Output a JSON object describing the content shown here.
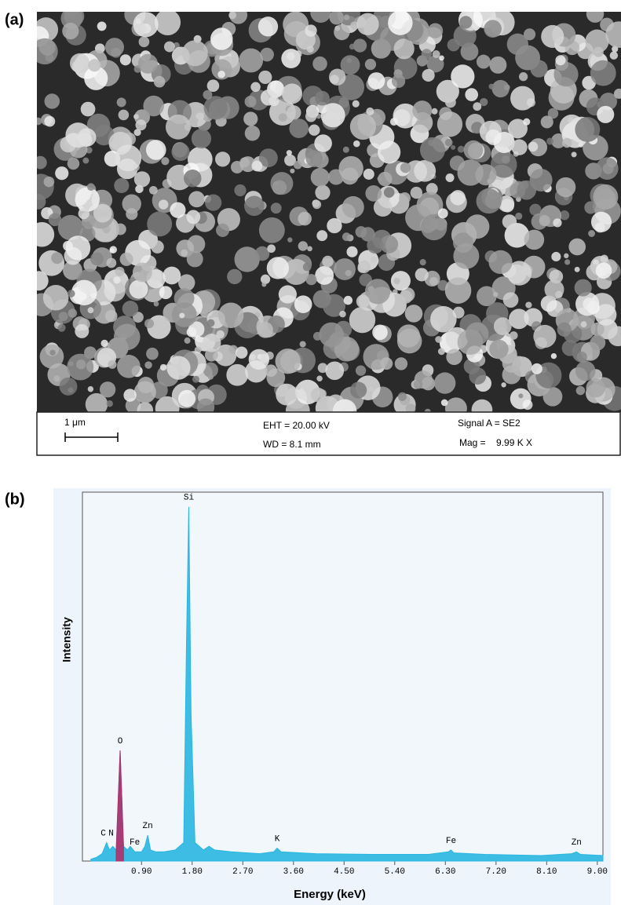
{
  "panel_labels": {
    "a": "(a)",
    "b": "(b)"
  },
  "sem": {
    "scale_bar": "1 μm",
    "eht": "EHT = 20.00 kV",
    "wd": "WD =  8.1 mm",
    "signal": "Signal A = SE2",
    "mag": "Mag =    9.99 K X"
  },
  "chart_data": {
    "type": "area",
    "xlabel": "Energy (keV)",
    "ylabel": "Intensity",
    "x": [
      0,
      0.1,
      0.2,
      0.28,
      0.33,
      0.39,
      0.45,
      0.52,
      0.58,
      0.65,
      0.7,
      0.78,
      0.9,
      0.96,
      1.01,
      1.06,
      1.15,
      1.3,
      1.5,
      1.65,
      1.7,
      1.74,
      1.78,
      1.85,
      2.0,
      2.1,
      2.2,
      2.5,
      3.0,
      3.25,
      3.31,
      3.38,
      4.0,
      5.0,
      6.0,
      6.35,
      6.4,
      6.45,
      7.0,
      8.0,
      8.55,
      8.63,
      8.7,
      9.1
    ],
    "series": [
      {
        "color": "#29b6e0",
        "values": [
          0.5,
          1,
          2,
          5,
          3,
          4,
          3,
          30,
          4,
          3,
          4,
          2.5,
          2.5,
          4,
          7,
          3,
          2.5,
          2.5,
          3,
          5,
          60,
          96,
          40,
          5,
          3,
          4,
          3,
          2.5,
          2,
          2.5,
          3.5,
          2.5,
          2,
          1.8,
          1.8,
          2.5,
          3,
          2.2,
          1.8,
          1.5,
          2,
          2.5,
          1.8,
          1.5
        ]
      },
      {
        "color": "#b0306a",
        "values": [
          null,
          null,
          null,
          null,
          null,
          null,
          3,
          30,
          4,
          null,
          null,
          null,
          null,
          null,
          null,
          null,
          null,
          null,
          null,
          null,
          null,
          null,
          null,
          null,
          null,
          null,
          null,
          null,
          null,
          null,
          null,
          null,
          null,
          null,
          null,
          null,
          null,
          null,
          null,
          null,
          null,
          null,
          null,
          null
        ]
      }
    ],
    "annotations": [
      {
        "text": "C",
        "x": 0.22
      },
      {
        "text": "N",
        "x": 0.36
      },
      {
        "text": "O",
        "x": 0.52
      },
      {
        "text": "Fe",
        "x": 0.78
      },
      {
        "text": "Zn",
        "x": 1.01
      },
      {
        "text": "Si",
        "x": 1.74
      },
      {
        "text": "K",
        "x": 3.31
      },
      {
        "text": "Fe",
        "x": 6.4
      },
      {
        "text": "Zn",
        "x": 8.63
      }
    ],
    "xlim": [
      -0.15,
      9.1
    ],
    "ylim": [
      0,
      100
    ],
    "xticks": [
      {
        "value": 0.9,
        "label": "0.90"
      },
      {
        "value": 1.8,
        "label": "1.80"
      },
      {
        "value": 2.7,
        "label": "2.70"
      },
      {
        "value": 3.6,
        "label": "3.60"
      },
      {
        "value": 4.5,
        "label": "4.50"
      },
      {
        "value": 5.4,
        "label": "5.40"
      },
      {
        "value": 6.3,
        "label": "6.30"
      },
      {
        "value": 7.2,
        "label": "7.20"
      },
      {
        "value": 8.1,
        "label": "8.10"
      },
      {
        "value": 9.0,
        "label": "9.00"
      }
    ]
  }
}
